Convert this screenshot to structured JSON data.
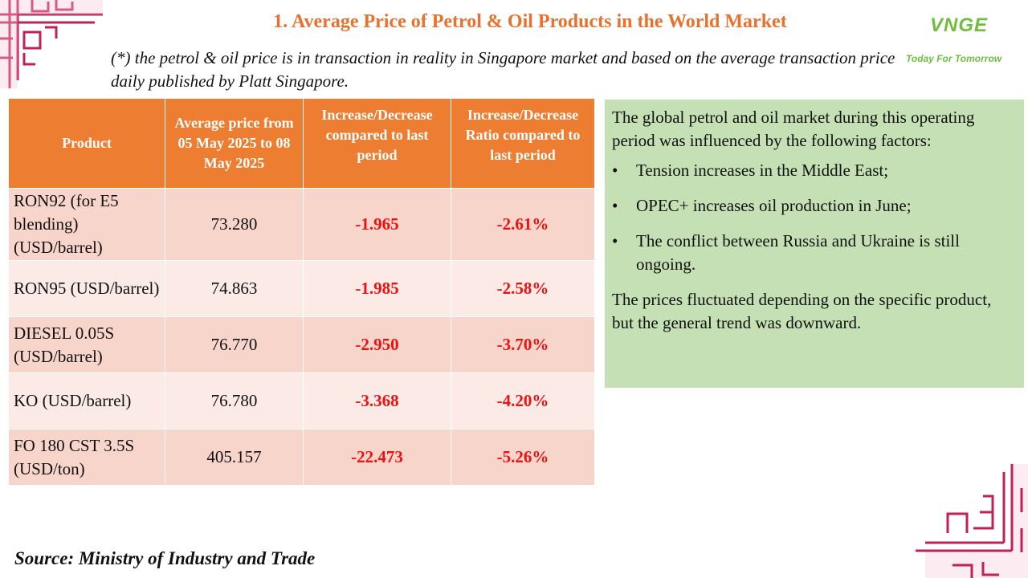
{
  "title": "1. Average Price of Petrol & Oil Products in the World Market",
  "note": "(*) the petrol & oil price is in transaction in reality in Singapore market and based on the average transaction price daily published by Platt Singapore.",
  "logo": {
    "mark": "VNGE",
    "tagline": "Today For Tomorrow"
  },
  "table": {
    "headers": {
      "product": "Product",
      "avg_line1": "Average price from",
      "avg_line2": "05 May 2025 to 08 May 2025",
      "change": "Increase/Decrease compared to last period",
      "ratio": "Increase/Decrease Ratio compared to last period"
    },
    "rows": [
      {
        "product": "RON92 (for E5 blending) (USD/barrel)",
        "avg": "73.280",
        "change": "-1.965",
        "ratio": "-2.61%"
      },
      {
        "product": "RON95 (USD/barrel)",
        "avg": "74.863",
        "change": "-1.985",
        "ratio": "-2.58%"
      },
      {
        "product": "DIESEL 0.05S (USD/barrel)",
        "avg": "76.770",
        "change": "-2.950",
        "ratio": "-3.70%"
      },
      {
        "product": "KO (USD/barrel)",
        "avg": "76.780",
        "change": "-3.368",
        "ratio": "-4.20%"
      },
      {
        "product": "FO 180 CST 3.5S (USD/ton)",
        "avg": "405.157",
        "change": "-22.473",
        "ratio": "-5.26%"
      }
    ]
  },
  "panel": {
    "intro": "The global petrol and oil market during this operating period was influenced by the following factors:",
    "bullets": [
      "Tension increases in the Middle East;",
      "OPEC+ increases oil production in June;",
      "The conflict between Russia and Ukraine is still ongoing."
    ],
    "conclusion": "The prices fluctuated depending on the specific product, but the general trend was downward."
  },
  "source": "Source: Ministry of Industry and Trade",
  "colors": {
    "accent": "#ed7d31",
    "title": "#e8712d",
    "negative": "#ee1111",
    "panel": "#c5e0b4",
    "ornament": "#c0215a"
  }
}
